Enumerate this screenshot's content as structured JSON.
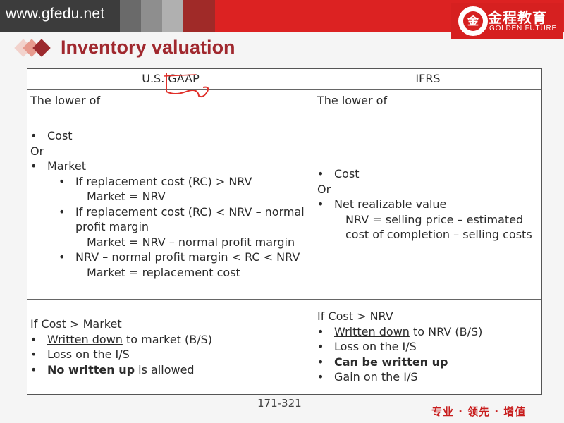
{
  "banner": {
    "site_url": "www.gfedu.net",
    "logo_seal_text": "金",
    "logo_cn": "金程教育",
    "logo_en": "GOLDEN FUTURE"
  },
  "page": {
    "title": "Inventory valuation",
    "footer_page": "171-321",
    "slogan": "专业 · 领先 · 增值"
  },
  "table": {
    "headers": [
      "U.S. GAAP",
      "IFRS"
    ],
    "gaap": {
      "intro": "The lower of",
      "options": [
        {
          "type": "b1",
          "text": "Cost"
        },
        {
          "type": "plain",
          "text": "Or"
        },
        {
          "type": "b1",
          "text": "Market"
        },
        {
          "type": "b2",
          "text": "If replacement cost (RC) > NRV"
        },
        {
          "type": "i2",
          "text": "Market = NRV"
        },
        {
          "type": "b2",
          "text": "If replacement cost (RC) < NRV – normal"
        },
        {
          "type": "c2",
          "text": "profit margin"
        },
        {
          "type": "i2",
          "text": "Market  = NRV – normal profit margin"
        },
        {
          "type": "b2",
          "text": "NRV – normal profit margin < RC < NRV"
        },
        {
          "type": "i2",
          "text": "Market = replacement cost"
        }
      ],
      "result_heading": " If Cost > Market",
      "result_items": [
        {
          "u": "Written down",
          "rest": " to market (B/S)"
        },
        {
          "rest": "Loss on the I/S"
        },
        {
          "b": "No written up",
          "rest": " is allowed"
        }
      ]
    },
    "ifrs": {
      "intro": "The lower of",
      "options": [
        {
          "type": "b1",
          "text": "Cost"
        },
        {
          "type": "plain",
          "text": "Or"
        },
        {
          "type": "b1",
          "text": "Net realizable value"
        },
        {
          "type": "i1",
          "text": "NRV = selling price – estimated"
        },
        {
          "type": "i1",
          "text": "cost of completion – selling costs"
        }
      ],
      "result_heading": "If  Cost > NRV",
      "result_items": [
        {
          "u": "Written down",
          "rest": " to NRV (B/S)"
        },
        {
          "rest": "Loss on the I/S"
        },
        {
          "b": "Can be written up",
          "rest": ""
        },
        {
          "rest": "Gain on the I/S"
        }
      ]
    }
  }
}
